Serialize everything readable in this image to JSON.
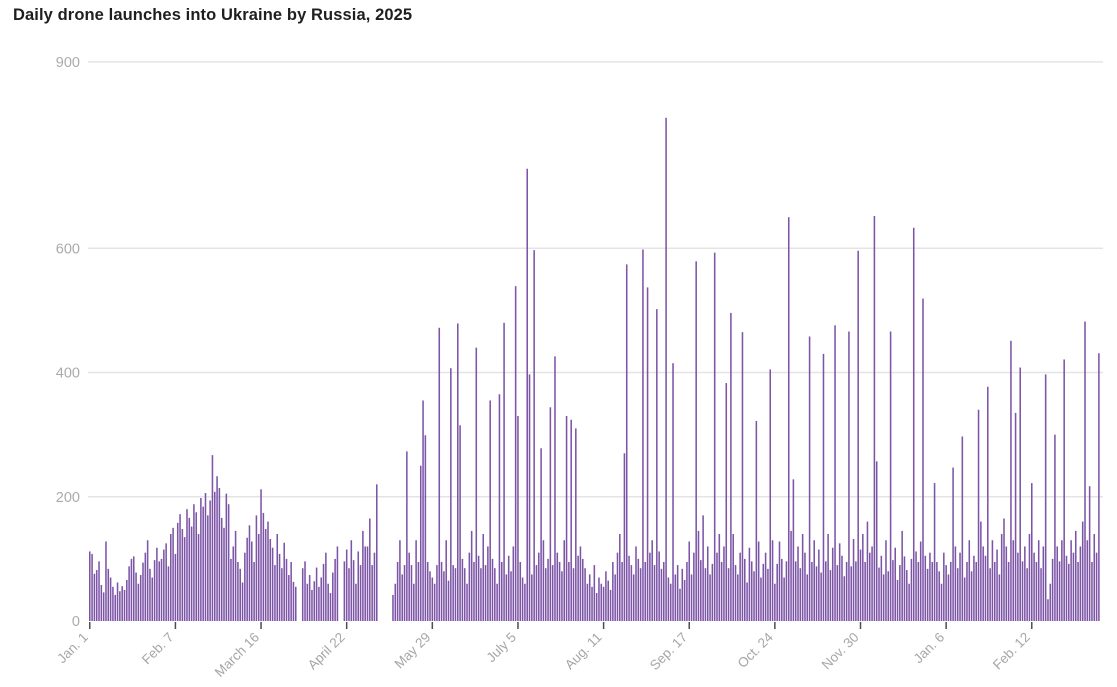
{
  "header": {
    "title": "Daily drone launches into Ukraine by Russia, 2025"
  },
  "chart_data": {
    "type": "bar",
    "title": "Daily drone launches into Ukraine by Russia, 2025",
    "bar_color": "#7d55a7",
    "grid_color": "#e4e4e4",
    "axis_label_color": "#ababab",
    "x_label_color": "#a6a6a6",
    "tick_color": "#4d4d4d",
    "ylim": [
      0,
      900
    ],
    "y_ticks": [
      0,
      200,
      400,
      600,
      900
    ],
    "x_ticks": [
      {
        "label": "Jan. 1",
        "day": 0
      },
      {
        "label": "Feb. 7",
        "day": 37
      },
      {
        "label": "March 16",
        "day": 74
      },
      {
        "label": "April 22",
        "day": 111
      },
      {
        "label": "May 29",
        "day": 148
      },
      {
        "label": "July 5",
        "day": 185
      },
      {
        "label": "Aug. 11",
        "day": 222
      },
      {
        "label": "Sep. 17",
        "day": 259
      },
      {
        "label": "Oct. 24",
        "day": 296
      },
      {
        "label": "Nov. 30",
        "day": 333
      },
      {
        "label": "Jan. 6",
        "day": 370
      },
      {
        "label": "Feb. 12",
        "day": 407
      }
    ],
    "values": [
      112,
      108,
      76,
      82,
      96,
      58,
      46,
      128,
      84,
      70,
      55,
      42,
      62,
      48,
      56,
      50,
      66,
      88,
      100,
      104,
      78,
      60,
      74,
      94,
      110,
      130,
      84,
      70,
      98,
      118,
      96,
      100,
      115,
      125,
      88,
      140,
      150,
      108,
      158,
      172,
      148,
      135,
      180,
      166,
      152,
      188,
      175,
      140,
      198,
      184,
      206,
      170,
      194,
      267,
      208,
      233,
      214,
      166,
      150,
      205,
      188,
      100,
      120,
      145,
      95,
      84,
      62,
      110,
      134,
      154,
      128,
      95,
      170,
      140,
      212,
      174,
      148,
      160,
      132,
      118,
      90,
      140,
      108,
      85,
      126,
      100,
      74,
      95,
      63,
      55,
      0,
      0,
      85,
      96,
      60,
      74,
      50,
      64,
      86,
      55,
      70,
      92,
      110,
      60,
      45,
      78,
      100,
      120,
      0,
      0,
      96,
      115,
      85,
      130,
      98,
      60,
      112,
      90,
      145,
      120,
      120,
      165,
      90,
      110,
      220,
      0,
      0,
      0,
      0,
      0,
      0,
      42,
      60,
      95,
      130,
      75,
      90,
      273,
      110,
      90,
      60,
      130,
      95,
      250,
      355,
      299,
      95,
      80,
      70,
      60,
      90,
      472,
      95,
      80,
      130,
      65,
      407,
      90,
      85,
      479,
      315,
      100,
      85,
      60,
      110,
      145,
      95,
      440,
      105,
      85,
      140,
      90,
      120,
      355,
      100,
      85,
      60,
      365,
      95,
      480,
      75,
      105,
      80,
      120,
      539,
      330,
      95,
      70,
      60,
      728,
      397,
      75,
      597,
      90,
      110,
      278,
      130,
      85,
      100,
      344,
      90,
      426,
      110,
      95,
      80,
      130,
      330,
      95,
      324,
      85,
      310,
      105,
      120,
      100,
      85,
      60,
      75,
      55,
      90,
      45,
      70,
      60,
      55,
      80,
      65,
      50,
      95,
      75,
      110,
      140,
      95,
      270,
      574,
      105,
      90,
      75,
      120,
      100,
      85,
      598,
      95,
      537,
      110,
      130,
      90,
      502,
      112,
      84,
      95,
      810,
      70,
      60,
      415,
      75,
      90,
      52,
      84,
      66,
      95,
      128,
      75,
      110,
      579,
      145,
      98,
      170,
      85,
      120,
      75,
      92,
      593,
      110,
      140,
      95,
      120,
      383,
      85,
      496,
      140,
      90,
      75,
      110,
      465,
      100,
      62,
      118,
      96,
      80,
      322,
      128,
      70,
      92,
      110,
      84,
      405,
      130,
      60,
      92,
      128,
      100,
      70,
      96,
      650,
      145,
      228,
      96,
      120,
      85,
      140,
      110,
      75,
      458,
      95,
      130,
      88,
      115,
      78,
      430,
      96,
      140,
      82,
      118,
      476,
      90,
      125,
      105,
      72,
      95,
      466,
      88,
      132,
      96,
      596,
      115,
      140,
      95,
      160,
      110,
      120,
      652,
      257,
      86,
      105,
      75,
      130,
      80,
      466,
      98,
      118,
      66,
      90,
      145,
      104,
      82,
      60,
      100,
      633,
      112,
      95,
      128,
      519,
      105,
      84,
      110,
      95,
      222,
      95,
      80,
      60,
      110,
      90,
      75,
      95,
      247,
      120,
      85,
      110,
      297,
      70,
      95,
      130,
      80,
      105,
      95,
      340,
      160,
      120,
      105,
      377,
      85,
      130,
      95,
      115,
      75,
      140,
      165,
      120,
      95,
      451,
      130,
      335,
      110,
      408,
      96,
      120,
      85,
      140,
      222,
      110,
      95,
      130,
      85,
      120,
      397,
      35,
      60,
      100,
      300,
      120,
      96,
      130,
      421,
      105,
      92,
      130,
      110,
      145,
      95,
      120,
      160,
      482,
      130,
      217,
      95,
      140,
      110,
      431
    ]
  }
}
